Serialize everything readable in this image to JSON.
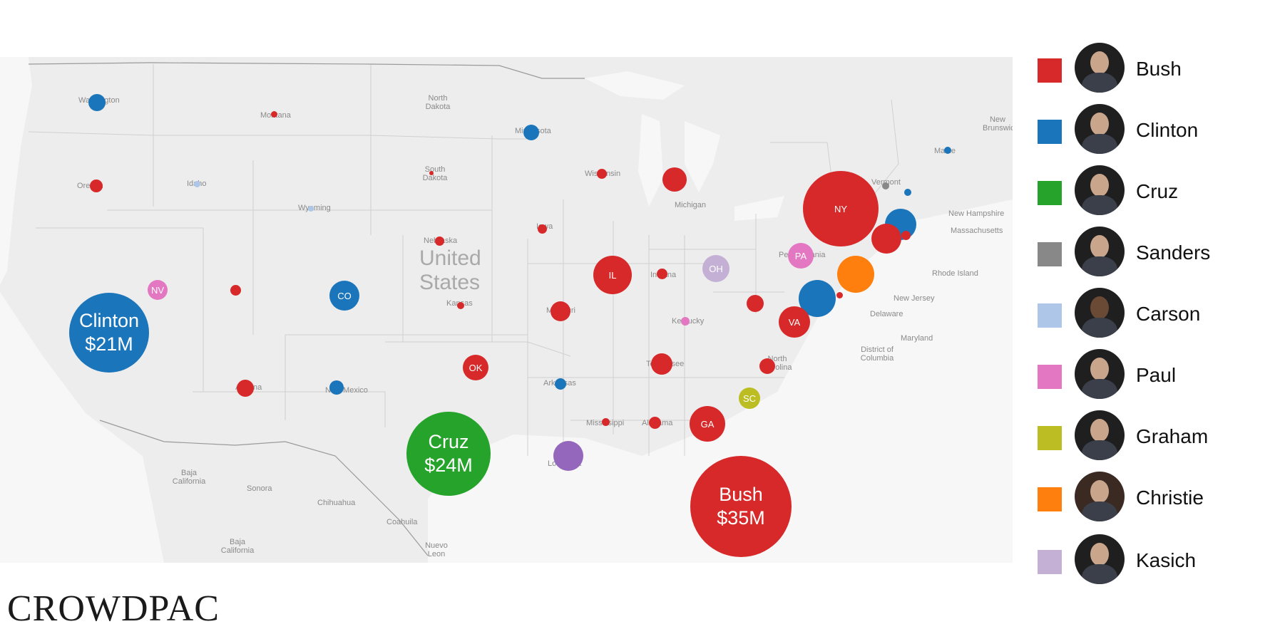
{
  "colors": {
    "Bush": "#d7292a",
    "Clinton": "#1b75bb",
    "Cruz": "#26a32b",
    "Sanders": "#888888",
    "Carson": "#aec7e8",
    "Paul": "#e377c2",
    "Graham": "#bcbd22",
    "Christie": "#ff7f0e",
    "Kasich": "#c5b0d5",
    "Louisiana": "#9467bd"
  },
  "legend": [
    {
      "name": "Bush",
      "photo": "bush-photo"
    },
    {
      "name": "Clinton",
      "photo": "clinton-photo"
    },
    {
      "name": "Cruz",
      "photo": "cruz-photo"
    },
    {
      "name": "Sanders",
      "photo": "sanders-photo"
    },
    {
      "name": "Carson",
      "photo": "carson-photo"
    },
    {
      "name": "Paul",
      "photo": "paul-photo"
    },
    {
      "name": "Graham",
      "photo": "graham-photo"
    },
    {
      "name": "Christie",
      "photo": "christie-photo"
    },
    {
      "name": "Kasich",
      "photo": "kasich-photo"
    }
  ],
  "logo": "CROWDPAC",
  "map": {
    "country_label": [
      "United",
      "States"
    ],
    "geo_labels": {
      "washington": "Washington",
      "montana": "Montana",
      "north_dakota": "North Dakota",
      "minnesota": "Minnesota",
      "oregon": "Oregon",
      "idaho": "Idaho",
      "south_dakota": "South Dakota",
      "wisconsin": "Wisconsin",
      "michigan": "Michigan",
      "wyoming": "Wyoming",
      "nebraska": "Nebraska",
      "iowa": "Iowa",
      "indiana": "Indiana",
      "kansas": "Kansas",
      "missouri": "Missouri",
      "kentucky": "Kentucky",
      "tennessee": "Tennessee",
      "north_carolina": "North Carolina",
      "arizona": "Arizona",
      "new_mexico": "New Mexico",
      "arkansas": "Arkansas",
      "mississippi": "Mississippi",
      "alabama": "Alabama",
      "louisiana": "Louisiana",
      "vermont": "Vermont",
      "maine": "Maine",
      "pennsylvania": "Pennsylvania",
      "new_brunswick": "New Brunswick",
      "new_hampshire": "New Hampshire",
      "massachusetts": "Massachusetts",
      "rhode_island": "Rhode Island",
      "new_jersey": "New Jersey",
      "delaware": "Delaware",
      "maryland": "Maryland",
      "dc": "District of Columbia",
      "baja_california": "Baja California",
      "baja_california_sur": "Baja California",
      "sonora": "Sonora",
      "chihuahua": "Chihuahua",
      "coahuila": "Coahuila",
      "nuevo_leon": "Nuevo Leon"
    },
    "bubbles": [
      {
        "id": "bush-national",
        "candidate": "Bush",
        "label": [
          "Bush",
          "$35M"
        ]
      },
      {
        "id": "cruz-national",
        "candidate": "Cruz",
        "label": [
          "Cruz",
          "$24M"
        ]
      },
      {
        "id": "clinton-national",
        "candidate": "Clinton",
        "label": [
          "Clinton",
          "$21M"
        ]
      },
      {
        "id": "ny",
        "candidate": "Bush",
        "label": [
          "NY"
        ]
      },
      {
        "id": "il",
        "candidate": "Bush",
        "label": [
          "IL"
        ]
      },
      {
        "id": "ok",
        "candidate": "Bush",
        "label": [
          "OK"
        ]
      },
      {
        "id": "ga",
        "candidate": "Bush",
        "label": [
          "GA"
        ]
      },
      {
        "id": "va",
        "candidate": "Bush",
        "label": [
          "VA"
        ]
      },
      {
        "id": "co",
        "candidate": "Clinton",
        "label": [
          "CO"
        ]
      },
      {
        "id": "nv",
        "candidate": "Paul",
        "label": [
          "NV"
        ]
      },
      {
        "id": "pa",
        "candidate": "Paul",
        "label": [
          "PA"
        ]
      },
      {
        "id": "oh",
        "candidate": "Kasich",
        "label": [
          "OH"
        ]
      },
      {
        "id": "sc",
        "candidate": "Graham",
        "label": [
          "SC"
        ]
      }
    ]
  }
}
